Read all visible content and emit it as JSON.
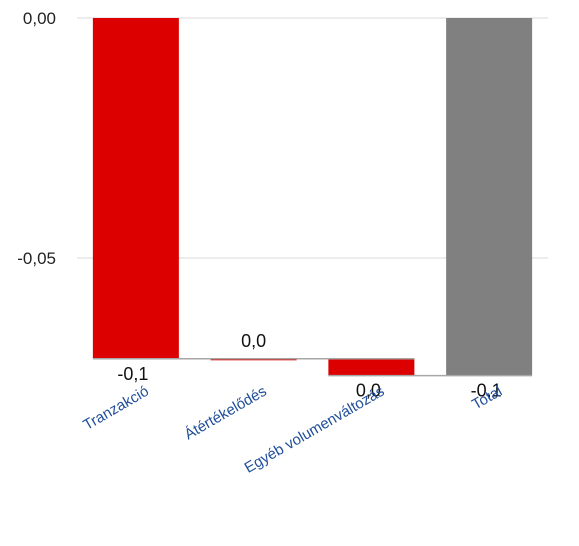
{
  "chart_data": {
    "type": "waterfall",
    "categories": [
      "Tranzakció",
      "Átértékelődés",
      "Egyéb volumenváltozás",
      "Total"
    ],
    "values": [
      -0.071,
      0.0,
      -0.0035,
      -0.0745
    ],
    "data_labels": [
      "-0,1",
      "0,0",
      "0,0",
      "-0,1"
    ],
    "is_total": [
      false,
      false,
      false,
      true
    ],
    "y_ticks": [
      0.0,
      -0.05
    ],
    "y_tick_labels": [
      "0,00",
      "-0,05"
    ],
    "ylim": [
      -0.0755,
      0.0
    ],
    "grid": true,
    "legend": "none",
    "colors": {
      "change": "#dd0000",
      "total": "#808080",
      "grid": "#e6e6e6",
      "connector": "#a6a6a6",
      "category_text": "#1f4e9a"
    }
  }
}
